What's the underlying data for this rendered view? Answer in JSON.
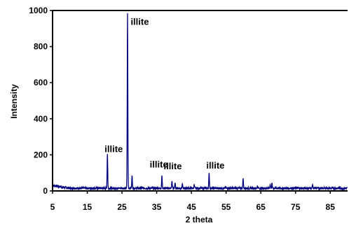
{
  "chart_data": {
    "type": "line",
    "title": "",
    "xlabel": "2 theta",
    "ylabel": "Intensity",
    "xlim": [
      5,
      90
    ],
    "ylim": [
      0,
      1000
    ],
    "x_ticks": [
      "5",
      "15",
      "25",
      "35",
      "45",
      "55",
      "65",
      "75",
      "85"
    ],
    "y_ticks": [
      "0",
      "200",
      "400",
      "600",
      "800",
      "1000"
    ],
    "grid": false,
    "legend": "none",
    "line_color": "#000080",
    "peaks": [
      {
        "x": 8.8,
        "y": 20
      },
      {
        "x": 14.0,
        "y": 18
      },
      {
        "x": 20.8,
        "y": 205
      },
      {
        "x": 26.6,
        "y": 985
      },
      {
        "x": 27.9,
        "y": 85
      },
      {
        "x": 36.5,
        "y": 85
      },
      {
        "x": 39.4,
        "y": 55
      },
      {
        "x": 40.3,
        "y": 45
      },
      {
        "x": 42.4,
        "y": 40
      },
      {
        "x": 45.8,
        "y": 35
      },
      {
        "x": 50.1,
        "y": 100
      },
      {
        "x": 54.9,
        "y": 20
      },
      {
        "x": 59.9,
        "y": 70
      },
      {
        "x": 64.0,
        "y": 28
      },
      {
        "x": 67.7,
        "y": 35
      },
      {
        "x": 68.2,
        "y": 45
      },
      {
        "x": 73.5,
        "y": 15
      },
      {
        "x": 79.9,
        "y": 35
      },
      {
        "x": 81.5,
        "y": 20
      },
      {
        "x": 83.8,
        "y": 20
      }
    ],
    "annotations": [
      {
        "text": "illite",
        "x": 27.5,
        "y": 920
      },
      {
        "text": "illite",
        "x": 20.0,
        "y": 215
      },
      {
        "text": "illite",
        "x": 33.0,
        "y": 130
      },
      {
        "text": "illite",
        "x": 37.0,
        "y": 120
      },
      {
        "text": "illite",
        "x": 49.3,
        "y": 125
      }
    ]
  }
}
